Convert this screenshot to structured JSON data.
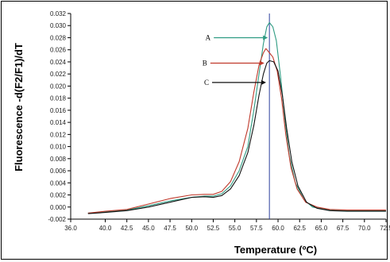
{
  "chart_data": {
    "type": "line",
    "title": "",
    "xlabel": "Temperature (ºC)",
    "ylabel": "Fluorescence -d(F2/F1)/dT",
    "xlim": [
      36.0,
      72.5
    ],
    "ylim": [
      -0.002,
      0.032
    ],
    "x_ticks": [
      "36.0",
      "40.0",
      "42.5",
      "45.0",
      "47.5",
      "50.0",
      "52.5",
      "55.0",
      "57.5",
      "60.0",
      "62.5",
      "65.0",
      "67.5",
      "70.0",
      "72.5"
    ],
    "y_ticks": [
      "-0.002",
      "0.000",
      "0.002",
      "0.004",
      "0.006",
      "0.008",
      "0.010",
      "0.012",
      "0.014",
      "0.016",
      "0.018",
      "0.020",
      "0.022",
      "0.024",
      "0.026",
      "0.028",
      "0.030",
      "0.032"
    ],
    "vertical_line_x": 59.0,
    "grid": false,
    "series": [
      {
        "name": "A",
        "color": "#2e9b82",
        "points": [
          [
            38,
            -0.001
          ],
          [
            40,
            -0.0008
          ],
          [
            42.5,
            -0.0005
          ],
          [
            45,
            0.0002
          ],
          [
            47.5,
            0.001
          ],
          [
            50,
            0.0016
          ],
          [
            51.5,
            0.0018
          ],
          [
            52.5,
            0.0018
          ],
          [
            53.5,
            0.0022
          ],
          [
            54.5,
            0.0035
          ],
          [
            55.5,
            0.006
          ],
          [
            56.5,
            0.01
          ],
          [
            57.2,
            0.016
          ],
          [
            57.8,
            0.022
          ],
          [
            58.3,
            0.027
          ],
          [
            58.7,
            0.0298
          ],
          [
            59.0,
            0.0305
          ],
          [
            59.4,
            0.0298
          ],
          [
            59.8,
            0.0275
          ],
          [
            60.3,
            0.0215
          ],
          [
            60.8,
            0.0145
          ],
          [
            61.3,
            0.0085
          ],
          [
            62.0,
            0.004
          ],
          [
            63.0,
            0.0012
          ],
          [
            64.0,
            0.0
          ],
          [
            66,
            -0.0005
          ],
          [
            68,
            -0.0006
          ],
          [
            70,
            -0.0006
          ],
          [
            72.5,
            -0.0006
          ]
        ]
      },
      {
        "name": "B",
        "color": "#c0392b",
        "points": [
          [
            38,
            -0.001
          ],
          [
            40,
            -0.0007
          ],
          [
            42.5,
            -0.0004
          ],
          [
            45,
            0.0005
          ],
          [
            47.5,
            0.0014
          ],
          [
            50,
            0.002
          ],
          [
            51.5,
            0.0021
          ],
          [
            52.5,
            0.0021
          ],
          [
            53.5,
            0.0026
          ],
          [
            54.5,
            0.0042
          ],
          [
            55.5,
            0.0075
          ],
          [
            56.5,
            0.013
          ],
          [
            57.2,
            0.019
          ],
          [
            57.8,
            0.0235
          ],
          [
            58.3,
            0.0255
          ],
          [
            58.6,
            0.0262
          ],
          [
            59.0,
            0.0255
          ],
          [
            59.4,
            0.0248
          ],
          [
            59.9,
            0.0225
          ],
          [
            60.4,
            0.018
          ],
          [
            60.9,
            0.012
          ],
          [
            61.5,
            0.0065
          ],
          [
            62.2,
            0.003
          ],
          [
            63.2,
            0.0008
          ],
          [
            64.5,
            0.0
          ],
          [
            66,
            -0.0004
          ],
          [
            68,
            -0.0005
          ],
          [
            70,
            -0.0005
          ],
          [
            72.5,
            -0.0005
          ]
        ]
      },
      {
        "name": "C",
        "color": "#111111",
        "points": [
          [
            38,
            -0.0011
          ],
          [
            40,
            -0.0009
          ],
          [
            42.5,
            -0.0006
          ],
          [
            45,
            0.0
          ],
          [
            47.5,
            0.0008
          ],
          [
            50,
            0.0016
          ],
          [
            51.5,
            0.0017
          ],
          [
            52.5,
            0.0016
          ],
          [
            53.5,
            0.0019
          ],
          [
            54.5,
            0.003
          ],
          [
            55.5,
            0.0052
          ],
          [
            56.5,
            0.009
          ],
          [
            57.2,
            0.0135
          ],
          [
            57.8,
            0.0185
          ],
          [
            58.3,
            0.022
          ],
          [
            58.7,
            0.0238
          ],
          [
            59.0,
            0.0242
          ],
          [
            59.5,
            0.024
          ],
          [
            60.0,
            0.0225
          ],
          [
            60.5,
            0.0185
          ],
          [
            61.0,
            0.013
          ],
          [
            61.6,
            0.0075
          ],
          [
            62.3,
            0.0035
          ],
          [
            63.3,
            0.0008
          ],
          [
            64.5,
            -0.0002
          ],
          [
            66,
            -0.0006
          ],
          [
            68,
            -0.0007
          ],
          [
            70,
            -0.0007
          ],
          [
            72.5,
            -0.0007
          ]
        ]
      }
    ],
    "annotations": [
      {
        "label": "A",
        "series": "A",
        "x": 59.0,
        "y": 0.028
      },
      {
        "label": "B",
        "series": "B",
        "x": 58.6,
        "y": 0.0238
      },
      {
        "label": "C",
        "series": "C",
        "x": 58.8,
        "y": 0.0206
      }
    ]
  }
}
